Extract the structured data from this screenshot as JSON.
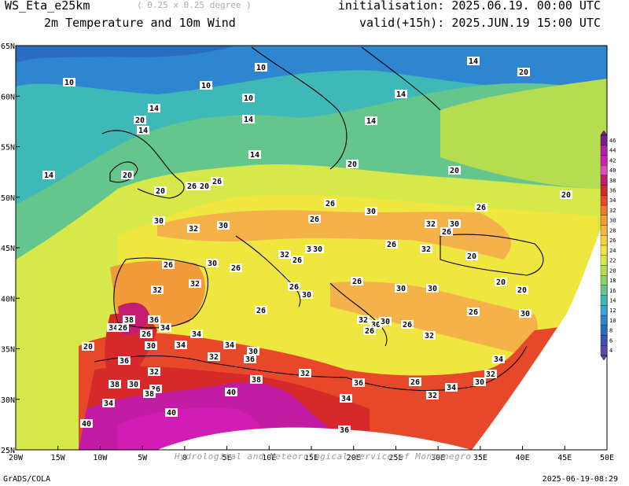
{
  "header": {
    "title": "WS_Eta_e25km",
    "resolution": "( 0.25 x 0.25 degree )",
    "subtitle": "2m Temperature and 10m Wind",
    "initialisation": "initialisation: 2025.06.19. 00:00 UTC",
    "valid": "valid(+15h): 2025.JUN.19 15:00 UTC"
  },
  "footer": {
    "left": "GrADS/COLA",
    "right": "2025-06-19-08:29",
    "watermark": "Hydrological and Meteorological service of Montenegro"
  },
  "axes": {
    "lon_labels": [
      "20W",
      "15W",
      "10W",
      "5W",
      "0",
      "5E",
      "10E",
      "15E",
      "20E",
      "25E",
      "30E",
      "35E",
      "40E",
      "45E",
      "50E"
    ],
    "lat_labels": [
      "65N",
      "60N",
      "55N",
      "50N",
      "45N",
      "40N",
      "35N",
      "30N",
      "25N"
    ]
  },
  "colorbar": {
    "levels": [
      "46",
      "44",
      "42",
      "40",
      "38",
      "36",
      "34",
      "32",
      "30",
      "28",
      "26",
      "24",
      "22",
      "20",
      "18",
      "16",
      "14",
      "12",
      "10",
      "8",
      "6",
      "4"
    ],
    "colors": [
      "#7a1f8c",
      "#b21fb0",
      "#d11db4",
      "#e14cc4",
      "#c41c6e",
      "#d62a2a",
      "#e8482a",
      "#f07830",
      "#f39a3a",
      "#f6b24a",
      "#f8d23c",
      "#f0e640",
      "#d6e84a",
      "#b6dc52",
      "#8ed26a",
      "#64c68c",
      "#3fb8b8",
      "#3aa6d8",
      "#2e86d0",
      "#2a6cc0",
      "#3a52b0",
      "#5a4aa8"
    ]
  },
  "isotherm_labels": [
    "10",
    "14",
    "20",
    "26",
    "30",
    "32",
    "34",
    "36",
    "38",
    "40"
  ],
  "colors": {
    "cold": "#2e86d0",
    "cool": "#64c68c",
    "mild": "#d6e84a",
    "warm": "#f6b24a",
    "hot": "#d62a2a",
    "extreme": "#c21ca4"
  }
}
